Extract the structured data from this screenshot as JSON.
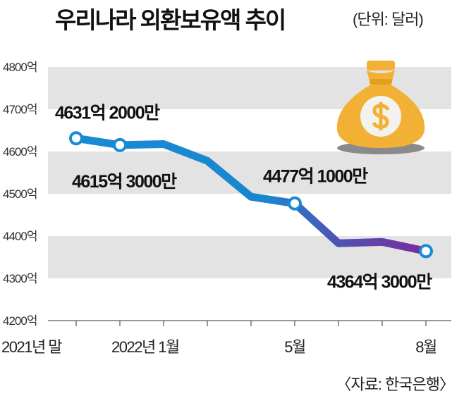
{
  "title": "우리나라 외환보유액 추이",
  "unit": "(단위: 달러)",
  "source": "〈자료: 한국은행〉",
  "chart_data": {
    "type": "line",
    "title": "우리나라 외환보유액 추이",
    "xlabel": "",
    "ylabel": "",
    "ylim": [
      4200,
      4800
    ],
    "yticks": [
      4200,
      4300,
      4400,
      4500,
      4600,
      4700,
      4800
    ],
    "ytick_labels": [
      "4200억",
      "4300억",
      "4400억",
      "4500억",
      "4600억",
      "4700억",
      "4800억"
    ],
    "x": [
      "2021-12",
      "2022-01",
      "2022-02",
      "2022-03",
      "2022-04",
      "2022-05",
      "2022-06",
      "2022-07",
      "2022-08"
    ],
    "xtick_labels": [
      {
        "index": 0,
        "label": "2021년 말"
      },
      {
        "index": 1,
        "label": "2022년 1월"
      },
      {
        "index": 5,
        "label": "5월"
      },
      {
        "index": 8,
        "label": "8월"
      }
    ],
    "series": [
      {
        "name": "외환보유액 (억 달러)",
        "values": [
          4631.2,
          4615.3,
          4617.5,
          4578,
          4493,
          4477.1,
          4383,
          4386,
          4364.3
        ]
      }
    ],
    "data_labels": [
      {
        "index": 0,
        "text": "4631억 2000만"
      },
      {
        "index": 1,
        "text": "4615억 3000만"
      },
      {
        "index": 5,
        "text": "4477억 1000만"
      },
      {
        "index": 8,
        "text": "4364억 3000만"
      }
    ],
    "grid": "alternating horizontal bands",
    "colors": {
      "line_start": "#1a8ad4",
      "line_end": "#7a2a9a",
      "band": "#e3e3e3",
      "bag": "#f2b134"
    }
  }
}
